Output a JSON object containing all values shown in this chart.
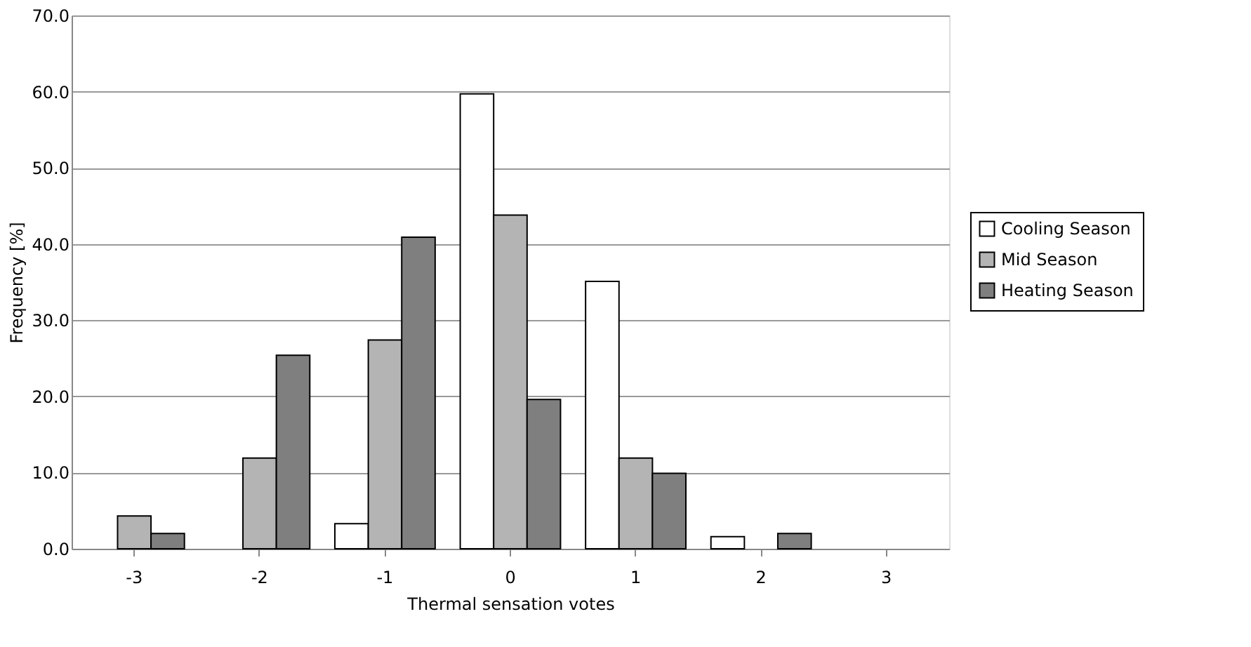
{
  "chart_data": {
    "type": "bar",
    "xlabel": "Thermal sensation votes",
    "ylabel": "Frequency [%]",
    "categories": [
      "-3",
      "-2",
      "-1",
      "0",
      "1",
      "2",
      "3"
    ],
    "series": [
      {
        "name": "Cooling Season",
        "color": "#ffffff",
        "values": [
          0,
          0,
          3.3,
          59.7,
          35.1,
          1.6,
          0
        ]
      },
      {
        "name": "Mid Season",
        "color": "#b4b4b4",
        "values": [
          4.3,
          11.9,
          27.4,
          43.8,
          11.9,
          0,
          0
        ]
      },
      {
        "name": "Heating Season",
        "color": "#7f7f7f",
        "values": [
          2.0,
          25.4,
          40.9,
          19.6,
          9.9,
          2.0,
          0
        ]
      }
    ],
    "ylim": [
      0,
      70
    ],
    "yticks": [
      {
        "value": 0,
        "label": "0.0"
      },
      {
        "value": 10,
        "label": "10.0"
      },
      {
        "value": 20,
        "label": "20.0"
      },
      {
        "value": 30,
        "label": "30.0"
      },
      {
        "value": 40,
        "label": "40.0"
      },
      {
        "value": 50,
        "label": "50.0"
      },
      {
        "value": 60,
        "label": "60.0"
      },
      {
        "value": 70,
        "label": "70.0"
      }
    ],
    "grid": "y",
    "legend": "right"
  }
}
